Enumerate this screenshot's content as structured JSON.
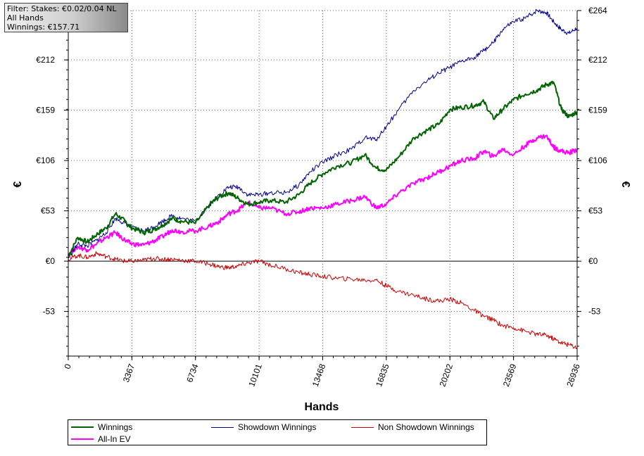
{
  "filter_box": {
    "line1": "Filter: Stakes: €0.02/0.04 NL",
    "line2": "All Hands",
    "line3": "Winnings: €157.71"
  },
  "chart_data": {
    "type": "line",
    "xlabel": "Hands",
    "ylabel": "€",
    "xlim": [
      0,
      26936
    ],
    "ylim": [
      -100,
      264
    ],
    "x_ticks": [
      0,
      3367,
      6734,
      10101,
      13468,
      16835,
      20202,
      23569,
      26936
    ],
    "x_tick_labels": [
      "0",
      "3367",
      "6734",
      "10101",
      "13468",
      "16835",
      "20202",
      "23569",
      "26936"
    ],
    "y_ticks": [
      -53,
      0,
      53,
      106,
      159,
      212,
      264
    ],
    "y_tick_labels": [
      "-53",
      "€0",
      "€53",
      "€106",
      "€159",
      "€212",
      "€264"
    ],
    "grid": true,
    "legend_position": "bottom",
    "x": [
      0,
      500,
      1000,
      1500,
      2000,
      2500,
      3000,
      3367,
      4000,
      4500,
      5000,
      5500,
      6000,
      6734,
      7500,
      8000,
      8500,
      9000,
      9500,
      10101,
      10700,
      11500,
      12200,
      12800,
      13468,
      14200,
      15000,
      15700,
      16300,
      16835,
      17500,
      18300,
      19000,
      19600,
      20202,
      20800,
      21500,
      22000,
      22500,
      23000,
      23569,
      24200,
      24800,
      25300,
      25700,
      26100,
      26500,
      26936
    ],
    "series": [
      {
        "name": "Winnings",
        "color": "#006400",
        "values": [
          5,
          25,
          20,
          28,
          35,
          50,
          42,
          35,
          30,
          33,
          38,
          45,
          42,
          40,
          60,
          68,
          72,
          66,
          60,
          62,
          64,
          62,
          70,
          82,
          92,
          100,
          104,
          112,
          98,
          96,
          110,
          130,
          138,
          144,
          160,
          162,
          164,
          168,
          150,
          160,
          170,
          176,
          180,
          186,
          188,
          160,
          152,
          157.71
        ]
      },
      {
        "name": "All-In EV",
        "color": "#ff00ff",
        "values": [
          8,
          15,
          12,
          18,
          25,
          30,
          22,
          18,
          17,
          21,
          26,
          33,
          31,
          32,
          37,
          42,
          50,
          54,
          62,
          56,
          56,
          50,
          52,
          56,
          56,
          60,
          64,
          68,
          56,
          60,
          72,
          82,
          88,
          94,
          100,
          106,
          108,
          116,
          110,
          118,
          112,
          122,
          130,
          132,
          120,
          116,
          114,
          118
        ]
      },
      {
        "name": "Showdown Winnings",
        "color": "#00008b",
        "values": [
          3,
          18,
          16,
          22,
          30,
          45,
          40,
          35,
          32,
          36,
          42,
          48,
          45,
          42,
          60,
          70,
          78,
          78,
          70,
          70,
          72,
          72,
          80,
          94,
          104,
          112,
          118,
          130,
          128,
          142,
          160,
          180,
          190,
          198,
          204,
          210,
          215,
          222,
          230,
          244,
          252,
          256,
          264,
          262,
          252,
          244,
          240,
          246
        ]
      },
      {
        "name": "Non Showdown Winnings",
        "color": "#cc0000",
        "values": [
          2,
          6,
          4,
          8,
          5,
          2,
          0,
          0,
          1,
          3,
          2,
          2,
          1,
          0,
          -3,
          -6,
          -7,
          -5,
          -2,
          0,
          -4,
          -8,
          -12,
          -14,
          -16,
          -18,
          -19,
          -20,
          -20,
          -26,
          -32,
          -36,
          -40,
          -42,
          -40,
          -44,
          -52,
          -58,
          -62,
          -68,
          -70,
          -74,
          -77,
          -78,
          -82,
          -86,
          -88,
          -91
        ]
      }
    ]
  }
}
